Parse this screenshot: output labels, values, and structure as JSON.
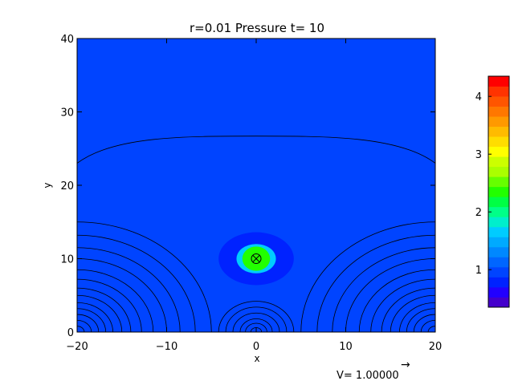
{
  "chart_data": {
    "type": "heatmap",
    "title": "r=0.01 Pressure t= 10",
    "xlabel": "x",
    "ylabel": "y",
    "xlim": [
      -20,
      20
    ],
    "ylim": [
      0,
      40
    ],
    "xticks": [
      {
        "value": -20,
        "label": "−20"
      },
      {
        "value": -10,
        "label": "−10"
      },
      {
        "value": 0,
        "label": "0"
      },
      {
        "value": 10,
        "label": "10"
      },
      {
        "value": 20,
        "label": "20"
      }
    ],
    "yticks": [
      {
        "value": 0,
        "label": "0"
      },
      {
        "value": 10,
        "label": "10"
      },
      {
        "value": 20,
        "label": "20"
      },
      {
        "value": 30,
        "label": "30"
      },
      {
        "value": 40,
        "label": "40"
      }
    ],
    "field": {
      "background_level": 0.95,
      "regions": [
        {
          "name": "outer-halo",
          "center": [
            0,
            10
          ],
          "radius": [
            4.2,
            3.6
          ],
          "level": 0.75
        },
        {
          "name": "ring-cyan",
          "center": [
            0,
            10
          ],
          "radius": [
            2.2,
            2.0
          ],
          "level": 1.7
        },
        {
          "name": "core-green",
          "center": [
            0,
            10
          ],
          "radius": [
            1.55,
            1.65
          ],
          "level": 2.4
        }
      ]
    },
    "contour_arcs": [
      {
        "center": [
          -20,
          0
        ],
        "radii": [
          0.8,
          1.6,
          2.4,
          3.2,
          4.0,
          5.0,
          6.0,
          7.2,
          8.5,
          10.0,
          11.5,
          13.2,
          15.0
        ]
      },
      {
        "center": [
          20,
          0
        ],
        "radii": [
          0.8,
          1.6,
          2.4,
          3.2,
          4.0,
          5.0,
          6.0,
          7.2,
          8.5,
          10.0,
          11.5,
          13.2,
          15.0
        ]
      },
      {
        "center": [
          0,
          0
        ],
        "radii": [
          0.6,
          1.2,
          1.8,
          2.6,
          3.4,
          4.2
        ]
      }
    ],
    "top_contour": {
      "y_edge": 23,
      "y_top": 26.7,
      "x_turn": 8
    },
    "markers": [
      {
        "type": "circle-cross",
        "x": 0,
        "y": 10
      }
    ],
    "colorbar": {
      "min": 0.35,
      "max": 4.35,
      "ticks": [
        {
          "value": 1,
          "label": "1"
        },
        {
          "value": 2,
          "label": "2"
        },
        {
          "value": 3,
          "label": "3"
        },
        {
          "value": 4,
          "label": "4"
        }
      ],
      "levels": [
        "#4400cc",
        "#2200ff",
        "#0022ff",
        "#0044ff",
        "#0066ff",
        "#0088ff",
        "#00aaff",
        "#00ccff",
        "#00eecc",
        "#00ff88",
        "#00ff44",
        "#22ff00",
        "#66ff00",
        "#aaff00",
        "#ccff00",
        "#ffff00",
        "#ffdd00",
        "#ffbb00",
        "#ff9900",
        "#ff7700",
        "#ff5500",
        "#ff3300",
        "#ff0000"
      ]
    },
    "vector_legend": {
      "label": "V= 1.00000",
      "arrow": "→"
    }
  },
  "colors": {
    "background": "#1a5cff",
    "halo": "#1144ee",
    "ring": "#00e0ff",
    "core": "#22ff22",
    "contour": "#000000"
  }
}
